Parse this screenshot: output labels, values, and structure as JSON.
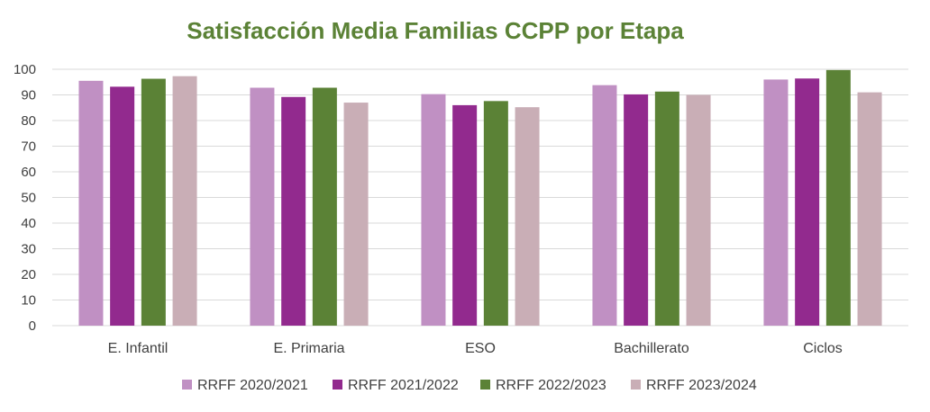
{
  "chart_data": {
    "type": "bar",
    "title": "Satisfacción Media Familias CCPP por Etapa",
    "title_color": "#5B8236",
    "xlabel": "",
    "ylabel": "",
    "ylim": [
      0,
      100
    ],
    "ytick_step": 10,
    "yticks": [
      "0",
      "10",
      "20",
      "30",
      "40",
      "50",
      "60",
      "70",
      "80",
      "90",
      "100"
    ],
    "grid": true,
    "legend_position": "bottom",
    "categories": [
      "E. Infantil",
      "E. Primaria",
      "ESO",
      "Bachillerato",
      "Ciclos"
    ],
    "series": [
      {
        "name": "RRFF 2020/2021",
        "color": "#C090C3",
        "values": [
          95.5,
          92.8,
          90.3,
          93.8,
          96.0
        ]
      },
      {
        "name": "RRFF 2021/2022",
        "color": "#922A8E",
        "values": [
          93.2,
          89.2,
          86.0,
          90.2,
          96.4
        ]
      },
      {
        "name": "RRFF 2022/2023",
        "color": "#5B8236",
        "values": [
          96.3,
          92.8,
          87.6,
          91.3,
          99.7
        ]
      },
      {
        "name": "RRFF 2023/2024",
        "color": "#C9AEB6",
        "values": [
          97.3,
          87.0,
          85.2,
          90.0,
          91.0
        ]
      }
    ]
  }
}
